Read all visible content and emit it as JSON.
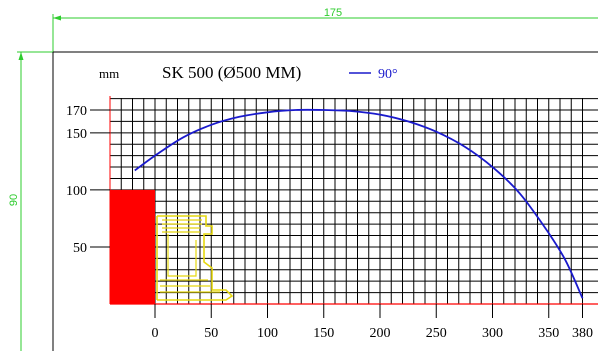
{
  "dimensions": {
    "width_value": "175",
    "height_value": "90",
    "color": "#2ecc2e"
  },
  "chart_data": {
    "type": "line",
    "title": "SK 500 (Ø500 MM)",
    "ylabel": "mm",
    "xlabel": "",
    "xlim": [
      -40,
      385
    ],
    "ylim": [
      0,
      172
    ],
    "x_ticks": [
      0,
      50,
      100,
      150,
      200,
      250,
      300,
      350,
      380
    ],
    "x_tick_labels": [
      "0",
      "50",
      "100",
      "150",
      "200",
      "250",
      "300",
      "350",
      "380"
    ],
    "y_ticks": [
      50,
      100,
      150,
      170
    ],
    "y_tick_labels": [
      "50",
      "100",
      "150",
      "170"
    ],
    "grid": true,
    "grid_step": 10,
    "legend_position": "top",
    "series": [
      {
        "name": "90°",
        "color": "#1a1acc",
        "x": [
          -18,
          0,
          25,
          50,
          75,
          100,
          125,
          150,
          175,
          200,
          225,
          250,
          275,
          300,
          325,
          350,
          365,
          380
        ],
        "y": [
          117,
          130,
          146,
          157,
          164,
          168,
          170,
          170,
          169,
          166,
          160,
          151,
          138,
          120,
          96,
          62,
          38,
          5
        ]
      }
    ],
    "wall_block": {
      "x0": -40,
      "x1": 0,
      "y0": 0,
      "y1": 100,
      "color": "#ff0000"
    },
    "baseline_color": "#ff0000",
    "axis_color": "#ff0000",
    "profile_color": "#e6d80f"
  }
}
